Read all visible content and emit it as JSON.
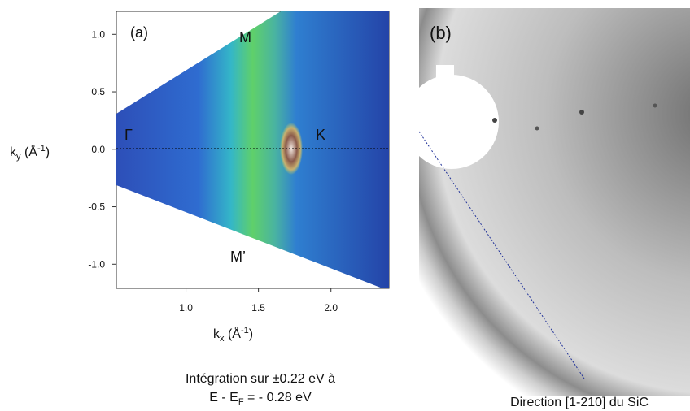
{
  "panel_a": {
    "label": "(a)",
    "xlim": [
      0.52,
      2.4
    ],
    "ylim": [
      -1.21,
      1.2
    ],
    "xticks": [
      {
        "value": 1,
        "label": "1.0"
      },
      1.5,
      {
        "value": 2,
        "label": "2.0"
      }
    ],
    "yticks": [
      {
        "value": 1,
        "label": "1.0"
      },
      0.5,
      {
        "value": 0,
        "label": "0.0"
      },
      -0.5,
      {
        "value": -1,
        "label": "-1.0"
      }
    ],
    "x_label": [
      "k",
      "x",
      " (Å",
      "-1",
      ")"
    ],
    "y_label": [
      "k",
      "y",
      " (Å",
      "-1",
      ")"
    ],
    "points": {
      "M": "M",
      "K": "K",
      "Gamma": "Γ",
      "M_prime": "M’"
    },
    "caption_line1": "Intégration sur ±0.22 eV à",
    "caption_line2": [
      "E - E",
      "F",
      " = - 0.28 eV"
    ]
  },
  "panel_b": {
    "label": "(b)",
    "caption": "Direction [1-210] du SiC"
  }
}
